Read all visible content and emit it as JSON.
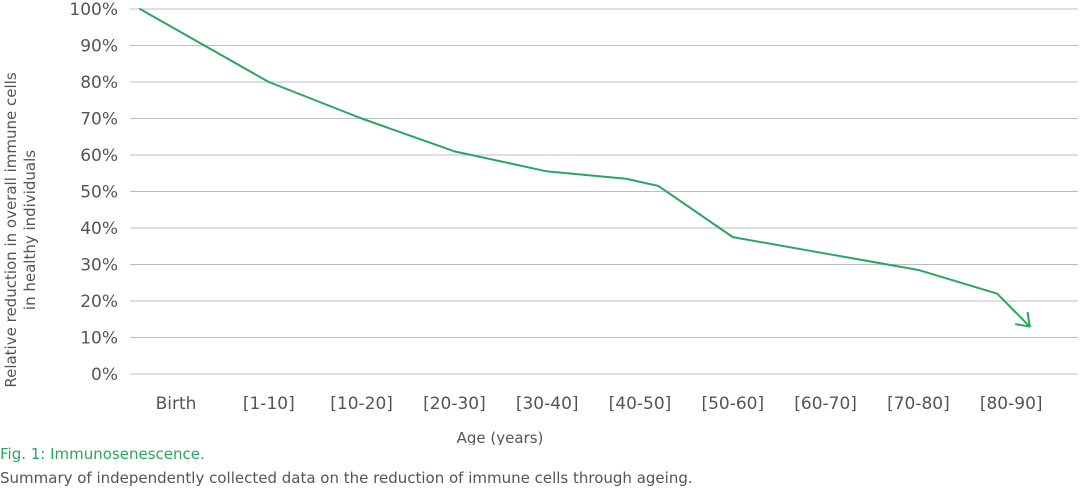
{
  "chart_data": {
    "type": "line",
    "xlabel": "Age (years)",
    "ylabel": [
      "Relative reduction in overall immune cells",
      "in healthy individuals"
    ],
    "ylim": [
      0,
      100
    ],
    "y_ticks": [
      "0%",
      "10%",
      "20%",
      "30%",
      "40%",
      "50%",
      "60%",
      "70%",
      "80%",
      "90%",
      "100%"
    ],
    "categories": [
      "Birth",
      "[1-10]",
      "[10-20]",
      "[20-30]",
      "[30-40]",
      "[40-50]",
      "[50-60]",
      "[60-70]",
      "[70-80]",
      "[80-90]"
    ],
    "points": [
      {
        "x": "Birth",
        "y": 100
      },
      {
        "x": "[1-10]",
        "y": 80
      },
      {
        "x": "[10-20]",
        "y": 70
      },
      {
        "x": "[20-30]",
        "y": 61
      },
      {
        "x": "[30-40]",
        "y": 55.5
      },
      {
        "x": "[40-50]",
        "y": 53.5
      },
      {
        "x": "[40-50]",
        "y": 51.5
      },
      {
        "x": "[50-60]",
        "y": 37.5
      },
      {
        "x": "[60-70]",
        "y": 33
      },
      {
        "x": "[70-80]",
        "y": 28.5
      },
      {
        "x": "[80-90]",
        "y": 22
      },
      {
        "x": "[80-90]",
        "y": 13
      }
    ],
    "end_marker": "arrow",
    "grid": true,
    "colors": {
      "line": "#2aa660",
      "grid": "#bdbdbd",
      "text": "#555555"
    }
  },
  "caption": {
    "title": "Fig. 1: Immunosenescence.",
    "text": "Summary of independently collected data on the reduction of immune cells through ageing."
  }
}
